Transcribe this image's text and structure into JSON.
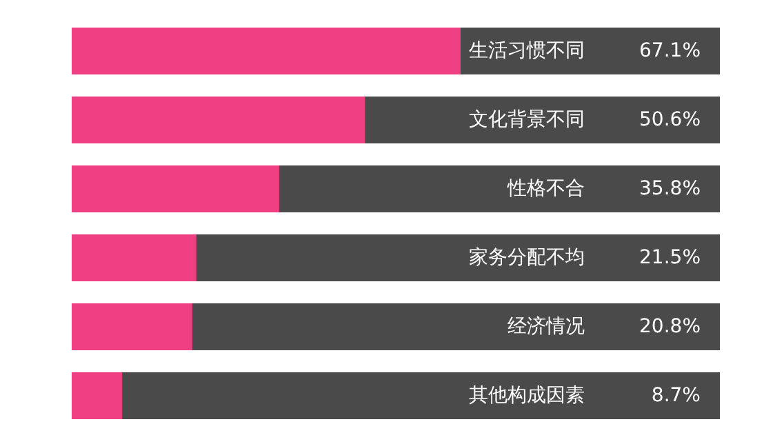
{
  "chart_data": {
    "type": "bar",
    "orientation": "horizontal",
    "categories": [
      "生活习惯不同",
      "文化背景不同",
      "性格不合",
      "家务分配不均",
      "经济情况",
      "其他构成因素"
    ],
    "values": [
      67.1,
      50.6,
      35.8,
      21.5,
      20.8,
      8.7
    ],
    "value_labels": [
      "67.1%",
      "50.6%",
      "35.8%",
      "21.5%",
      "20.8%",
      "8.7%"
    ],
    "color": "#ee3f82"
  }
}
